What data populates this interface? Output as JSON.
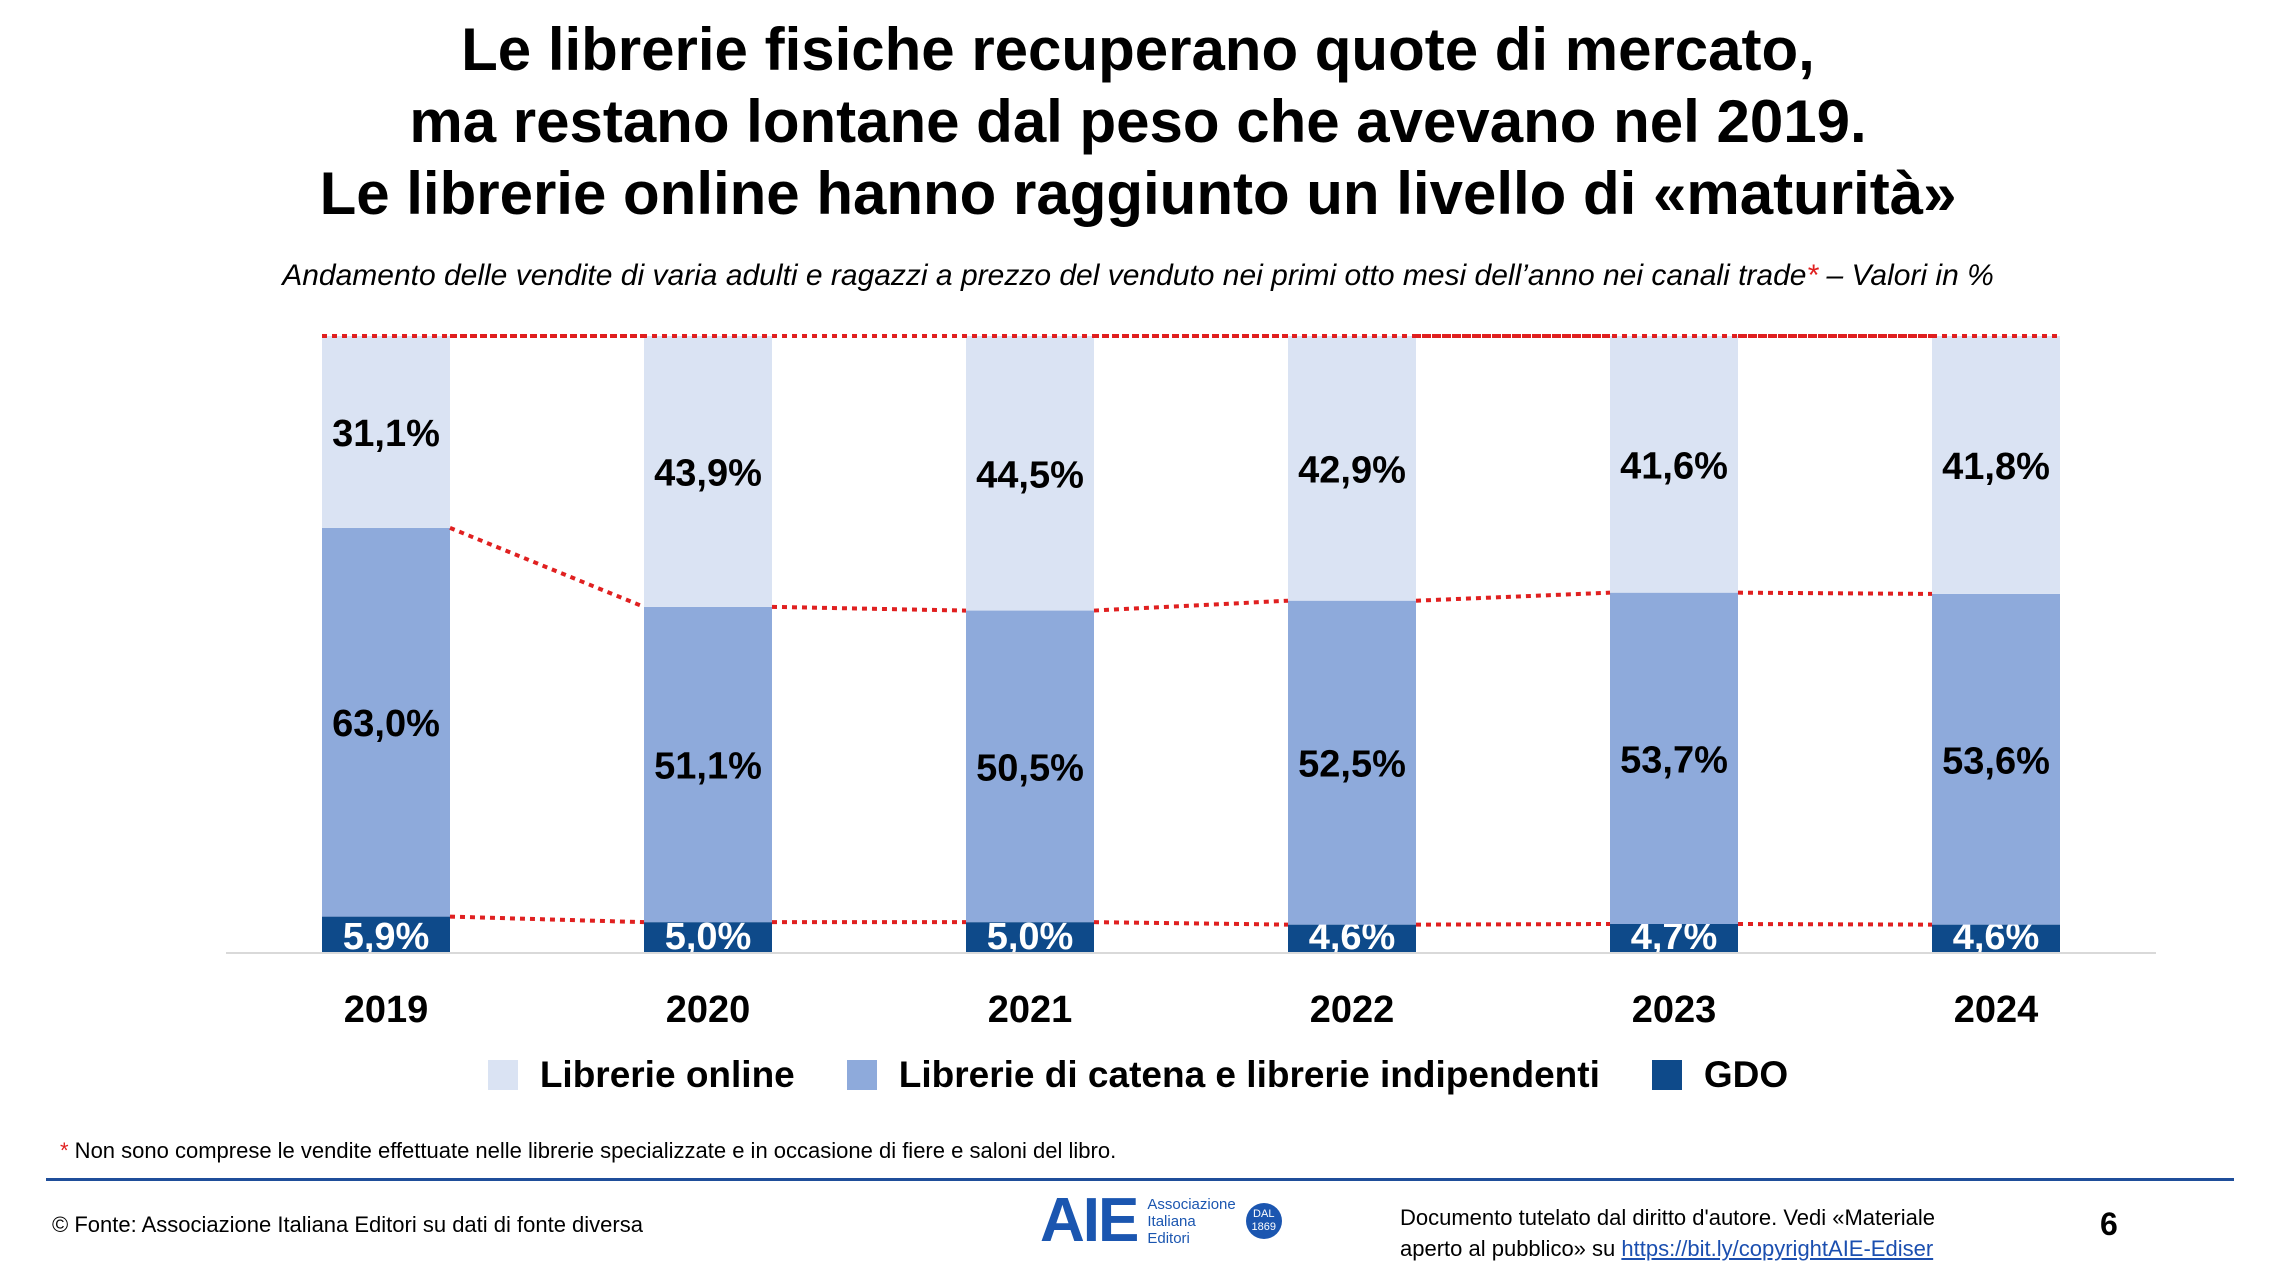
{
  "chart_data": {
    "type": "bar",
    "stacked": true,
    "title": "Le librerie fisiche recuperano quote di mercato,\nma restano lontane dal peso che avevano nel 2019.\nLe librerie online hanno raggiunto un livello di «maturità»",
    "subtitle": "Andamento delle vendite di varia adulti e ragazzi a prezzo del venduto nei primi otto mesi dell’anno nei canali trade",
    "subtitle_asterisk": "*",
    "subtitle_suffix": " – Valori in %",
    "categories": [
      "2019",
      "2020",
      "2021",
      "2022",
      "2023",
      "2024"
    ],
    "series": [
      {
        "name": "GDO",
        "color": "#0e4a8a",
        "values": [
          5.9,
          5.0,
          5.0,
          4.6,
          4.7,
          4.6
        ],
        "labels": [
          "5,9%",
          "5,0%",
          "5,0%",
          "4,6%",
          "4,7%",
          "4,6%"
        ]
      },
      {
        "name": "Librerie di catena e librerie indipendenti",
        "color": "#8eaadb",
        "values": [
          63.0,
          51.1,
          50.5,
          52.5,
          53.7,
          53.6
        ],
        "labels": [
          "63,0%",
          "51,1%",
          "50,5%",
          "52,5%",
          "53,7%",
          "53,6%"
        ]
      },
      {
        "name": "Librerie online",
        "color": "#dae3f3",
        "values": [
          31.1,
          43.9,
          44.5,
          42.9,
          41.6,
          41.8
        ],
        "labels": [
          "31,1%",
          "43,9%",
          "44,5%",
          "42,9%",
          "41,6%",
          "41,8%"
        ]
      }
    ],
    "legend_order": [
      "Librerie online",
      "Librerie di catena e librerie indipendenti",
      "GDO"
    ],
    "legend_position": "bottom",
    "ylim": [
      0,
      100
    ],
    "connector_color": "#e02020",
    "grid": false
  },
  "footnote": {
    "asterisk": "*",
    "text": " Non sono comprese le vendite effettuate nelle librerie specializzate e in occasione di fiere e saloni del libro."
  },
  "footer": {
    "source": "© Fonte: Associazione Italiana Editori su dati di fonte diversa",
    "logo_mark": "AIE",
    "logo_line1": "Associazione",
    "logo_line2": "Italiana",
    "logo_line3": "Editori",
    "logo_badge1": "DAL",
    "logo_badge2": "1869",
    "legal_line1": "Documento tutelato dal diritto d'autore. Vedi «Materiale",
    "legal_line2_prefix": "aperto al pubblico» su ",
    "legal_link": "https://bit.ly/copyrightAIE-Ediser",
    "page_number": "6"
  }
}
